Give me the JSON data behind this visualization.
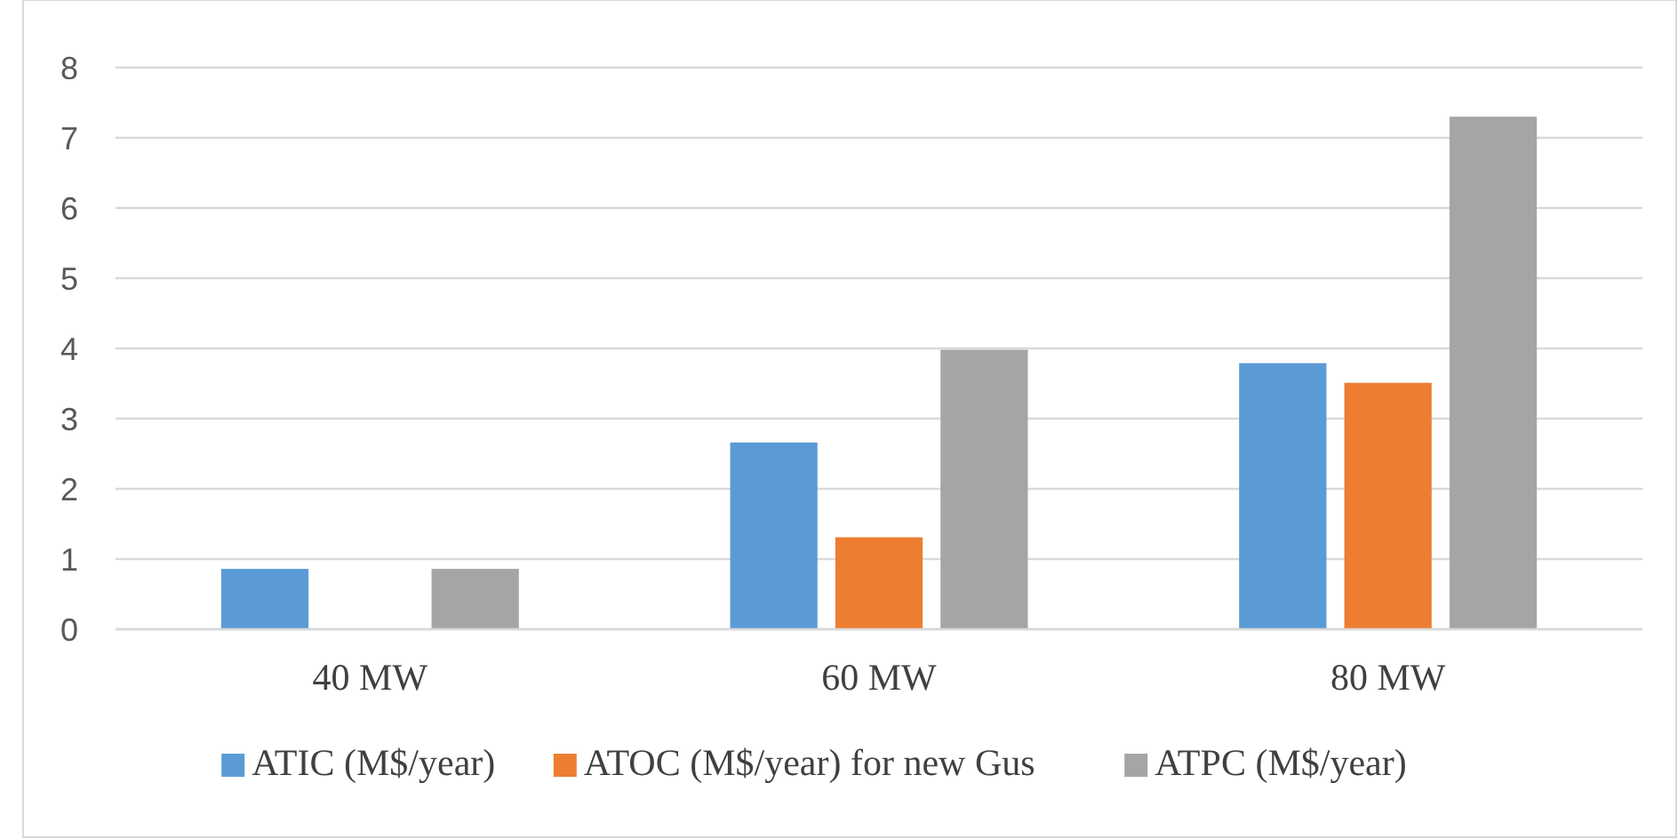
{
  "chart_data": {
    "type": "bar",
    "categories": [
      "40 MW",
      "60 MW",
      "80 MW"
    ],
    "series": [
      {
        "name": "ATIC (M$/year)",
        "color": "#5b9bd5",
        "values": [
          0.86,
          2.66,
          3.79
        ]
      },
      {
        "name": "ATOC (M$/year) for new Gus",
        "color": "#ed7d31",
        "values": [
          null,
          1.31,
          3.51
        ]
      },
      {
        "name": "ATPC (M$/year)",
        "color": "#a5a5a5",
        "values": [
          0.86,
          3.98,
          7.3
        ]
      }
    ],
    "ylim": [
      0,
      8
    ],
    "yticks": [
      0,
      1,
      2,
      3,
      4,
      5,
      6,
      7,
      8
    ],
    "grid": "y",
    "legend": "bottom"
  }
}
